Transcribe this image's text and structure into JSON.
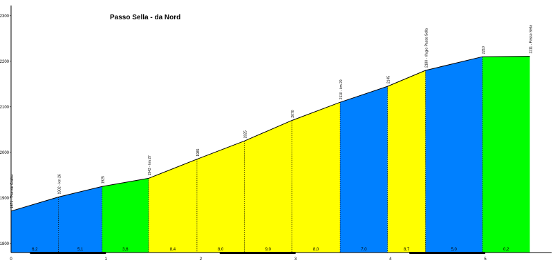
{
  "chart_data": {
    "type": "area",
    "title": "Passo Sella - da Nord",
    "xlabel": "",
    "ylabel": "",
    "xlim": [
      0,
      5.75
    ],
    "ylim": [
      1780,
      2300
    ],
    "yticks": [
      1800,
      1900,
      2000,
      2100,
      2200,
      2300
    ],
    "xticks": [
      0,
      1,
      2,
      3,
      4,
      5
    ],
    "grid": false,
    "colors": {
      "blue": "#0080ff",
      "green": "#00ff00",
      "yellow": "#ffff00"
    },
    "points": [
      {
        "x": 0.0,
        "y": 1871,
        "label": "1871 - Pian de Gralba"
      },
      {
        "x": 0.5,
        "y": 1902,
        "label": "1902 - km 26"
      },
      {
        "x": 0.96,
        "y": 1925,
        "label": "1925"
      },
      {
        "x": 1.45,
        "y": 1943,
        "label": "1943 - km 27"
      },
      {
        "x": 1.96,
        "y": 1985,
        "label": "1985"
      },
      {
        "x": 2.46,
        "y": 2025,
        "label": "2025"
      },
      {
        "x": 2.96,
        "y": 2070,
        "label": "2070"
      },
      {
        "x": 3.47,
        "y": 2110,
        "label": "2110 - km 29"
      },
      {
        "x": 3.97,
        "y": 2145,
        "label": "2145"
      },
      {
        "x": 4.37,
        "y": 2180,
        "label": "2180 - rifugio Passo Sella"
      },
      {
        "x": 4.97,
        "y": 2210,
        "label": "2210"
      },
      {
        "x": 5.47,
        "y": 2211,
        "label": "2211 - Passo Sella"
      }
    ],
    "segments": [
      {
        "grade": "6,2",
        "color": "blue"
      },
      {
        "grade": "5,1",
        "color": "blue"
      },
      {
        "grade": "3,6",
        "color": "green"
      },
      {
        "grade": "8,4",
        "color": "yellow"
      },
      {
        "grade": "8,0",
        "color": "yellow"
      },
      {
        "grade": "9,0",
        "color": "yellow"
      },
      {
        "grade": "8,0",
        "color": "yellow"
      },
      {
        "grade": "7,0",
        "color": "blue"
      },
      {
        "grade": "8,7",
        "color": "yellow"
      },
      {
        "grade": "5,0",
        "color": "blue"
      },
      {
        "grade": "0,2",
        "color": "green"
      }
    ]
  }
}
